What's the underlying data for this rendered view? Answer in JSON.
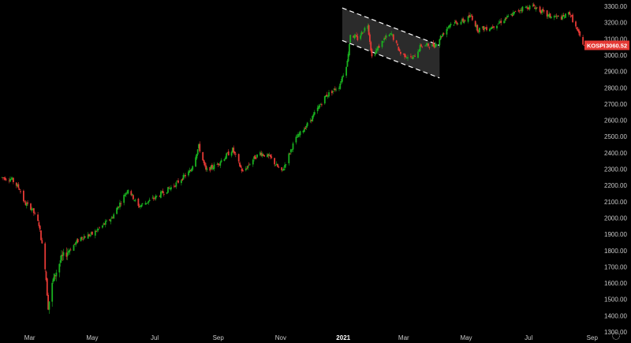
{
  "chart_data": {
    "type": "candlestick",
    "symbol": "KOSPI",
    "last_price": "3060.52",
    "ylim": [
      1300,
      3300
    ],
    "y_ticks": [
      1300,
      1400,
      1500,
      1600,
      1700,
      1800,
      1900,
      2000,
      2100,
      2200,
      2300,
      2400,
      2500,
      2600,
      2700,
      2800,
      2900,
      3000,
      3100,
      3200,
      3300
    ],
    "y_tick_labels": [
      "1300.00",
      "1400.00",
      "1500.00",
      "1600.00",
      "1700.00",
      "1800.00",
      "1900.00",
      "2000.00",
      "2100.00",
      "2200.00",
      "2300.00",
      "2400.00",
      "2500.00",
      "2600.00",
      "2700.00",
      "2800.00",
      "2900.00",
      "3000.00",
      "3100.00",
      "3200.00",
      "3300.00"
    ],
    "x_ticks": [
      "Mar",
      "May",
      "Jul",
      "Sep",
      "Nov",
      "2021",
      "Mar",
      "May",
      "Jul",
      "Sep"
    ],
    "x_tick_dates": [
      "2020-03-01",
      "2020-05-01",
      "2020-07-01",
      "2020-09-01",
      "2020-11-01",
      "2021-01-01",
      "2021-03-01",
      "2021-05-01",
      "2021-07-01",
      "2021-09-01"
    ],
    "x_range": [
      "2020-02-01",
      "2021-09-05"
    ],
    "price_path": [
      [
        "2020-02-01",
        2250
      ],
      [
        "2020-02-12",
        2240
      ],
      [
        "2020-02-20",
        2180
      ],
      [
        "2020-02-25",
        2090
      ],
      [
        "2020-03-03",
        2060
      ],
      [
        "2020-03-10",
        1960
      ],
      [
        "2020-03-16",
        1710
      ],
      [
        "2020-03-19",
        1460
      ],
      [
        "2020-03-24",
        1620
      ],
      [
        "2020-03-31",
        1740
      ],
      [
        "2020-04-08",
        1800
      ],
      [
        "2020-04-20",
        1880
      ],
      [
        "2020-05-01",
        1900
      ],
      [
        "2020-05-20",
        2000
      ],
      [
        "2020-06-05",
        2180
      ],
      [
        "2020-06-15",
        2070
      ],
      [
        "2020-06-30",
        2120
      ],
      [
        "2020-07-20",
        2200
      ],
      [
        "2020-08-05",
        2290
      ],
      [
        "2020-08-13",
        2440
      ],
      [
        "2020-08-20",
        2290
      ],
      [
        "2020-08-31",
        2330
      ],
      [
        "2020-09-15",
        2420
      ],
      [
        "2020-09-25",
        2280
      ],
      [
        "2020-10-05",
        2360
      ],
      [
        "2020-10-12",
        2400
      ],
      [
        "2020-10-22",
        2370
      ],
      [
        "2020-11-02",
        2280
      ],
      [
        "2020-11-15",
        2480
      ],
      [
        "2020-11-30",
        2600
      ],
      [
        "2020-12-15",
        2750
      ],
      [
        "2020-12-28",
        2810
      ],
      [
        "2021-01-05",
        2960
      ],
      [
        "2021-01-08",
        3130
      ],
      [
        "2021-01-15",
        3100
      ],
      [
        "2021-01-25",
        3190
      ],
      [
        "2021-01-29",
        2990
      ],
      [
        "2021-02-10",
        3100
      ],
      [
        "2021-02-17",
        3130
      ],
      [
        "2021-02-26",
        3010
      ],
      [
        "2021-03-10",
        2980
      ],
      [
        "2021-03-18",
        3060
      ],
      [
        "2021-03-31",
        3060
      ],
      [
        "2021-04-15",
        3190
      ],
      [
        "2021-04-28",
        3210
      ],
      [
        "2021-05-06",
        3240
      ],
      [
        "2021-05-12",
        3160
      ],
      [
        "2021-05-25",
        3170
      ],
      [
        "2021-06-10",
        3230
      ],
      [
        "2021-06-25",
        3290
      ],
      [
        "2021-07-06",
        3300
      ],
      [
        "2021-07-20",
        3240
      ],
      [
        "2021-08-03",
        3230
      ],
      [
        "2021-08-10",
        3260
      ],
      [
        "2021-08-18",
        3140
      ],
      [
        "2021-08-24",
        3060
      ]
    ],
    "annotation_channel": {
      "upper": [
        [
          "2020-12-31",
          3290
        ],
        [
          "2021-04-05",
          3060
        ]
      ],
      "lower": [
        [
          "2020-12-31",
          3090
        ],
        [
          "2021-04-05",
          2860
        ]
      ],
      "style": "dashed parallel channel with gray fill"
    },
    "colors": {
      "up": "#19b01f",
      "down": "#e53935",
      "badge": "#e53935",
      "background": "#000000",
      "channel_fill": "#3a3a3a"
    },
    "grid": false
  }
}
